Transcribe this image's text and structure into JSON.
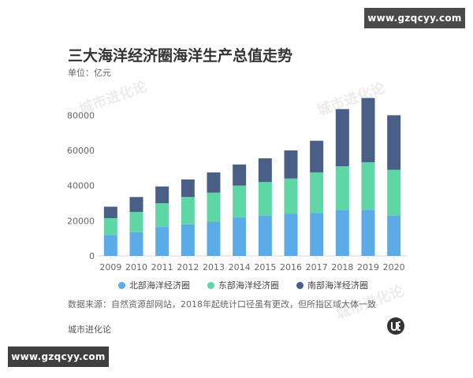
{
  "watermark_site": "www.gzqcyy.com",
  "watermark_brand": "城市进化论",
  "header": {
    "title": "三大海洋经济圈海洋生产总值走势",
    "unit": "单位：亿元"
  },
  "footer": {
    "source": "数据来源：自然资源部网站，2018年起统计口径虽有更改，但所指区域大体一致",
    "brand": "城市进化论"
  },
  "colors": {
    "north": "#5aabe6",
    "east": "#5ed6a6",
    "south": "#4a5f86",
    "axis": "#d9d9d9",
    "tick_text": "#666666"
  },
  "chart_data": {
    "type": "bar",
    "stacked": true,
    "categories": [
      "2009",
      "2010",
      "2011",
      "2012",
      "2013",
      "2014",
      "2015",
      "2016",
      "2017",
      "2018",
      "2019",
      "2020"
    ],
    "series": [
      {
        "name": "北部海洋经济圈",
        "values": [
          12000,
          13500,
          16500,
          18000,
          19500,
          22000,
          23000,
          24000,
          24500,
          26000,
          26300,
          23000
        ]
      },
      {
        "name": "东部海洋经济圈",
        "values": [
          9500,
          11500,
          13500,
          15500,
          16500,
          18000,
          19000,
          20000,
          23000,
          25000,
          27000,
          26000
        ]
      },
      {
        "name": "南部海洋经济圈",
        "values": [
          6500,
          8500,
          9500,
          10000,
          11500,
          12000,
          13500,
          16000,
          18000,
          32500,
          36500,
          31000
        ]
      }
    ],
    "ylim": [
      0,
      90000
    ],
    "yticks": [
      0,
      20000,
      40000,
      60000,
      80000
    ],
    "legend_position": "bottom",
    "grid": false
  }
}
